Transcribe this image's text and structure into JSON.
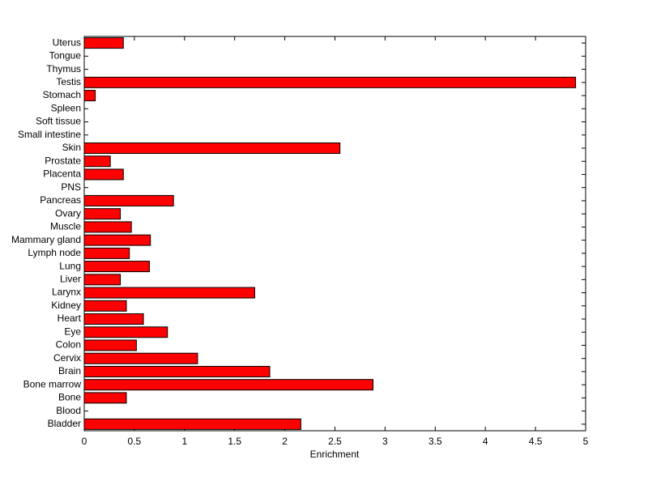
{
  "chart_data": {
    "type": "hbar",
    "xlabel": "Enrichment",
    "categories": [
      "Bladder",
      "Blood",
      "Bone",
      "Bone marrow",
      "Brain",
      "Cervix",
      "Colon",
      "Eye",
      "Heart",
      "Kidney",
      "Larynx",
      "Liver",
      "Lung",
      "Lymph node",
      "Mammary gland",
      "Muscle",
      "Ovary",
      "Pancreas",
      "PNS",
      "Placenta",
      "Prostate",
      "Skin",
      "Small intestine",
      "Soft tissue",
      "Spleen",
      "Stomach",
      "Testis",
      "Thymus",
      "Tongue",
      "Uterus"
    ],
    "values": [
      2.16,
      0,
      0.42,
      2.88,
      1.85,
      1.13,
      0.52,
      0.83,
      0.59,
      0.42,
      1.7,
      0.36,
      0.65,
      0.45,
      0.66,
      0.47,
      0.36,
      0.89,
      0,
      0.39,
      0.26,
      2.55,
      0,
      0,
      0,
      0.11,
      4.9,
      0,
      0,
      0.39
    ],
    "color": "#ff0000",
    "xlim": [
      0,
      5
    ],
    "xticks": [
      0,
      0.5,
      1,
      1.5,
      2,
      2.5,
      3,
      3.5,
      4,
      4.5,
      5
    ]
  }
}
